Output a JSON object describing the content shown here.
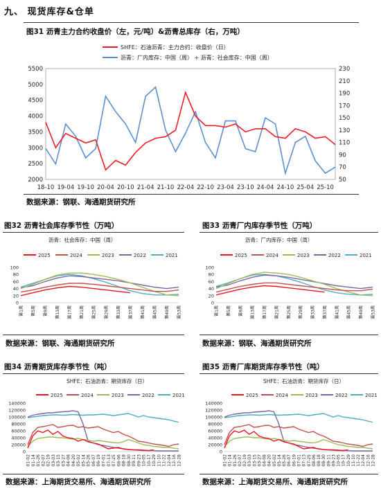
{
  "section": {
    "title": "九、   现货库存&仓单"
  },
  "figures": {
    "f31": {
      "title": "图31   沥青主力合约收盘价（左，元/吨）&沥青总库存（右，万吨）",
      "source": "数据来源：钢联、海通期货研究所"
    },
    "f32": {
      "title": "图32   沥青社会库存季节性（万吨）",
      "source": "数据来源：钢联、海通期货研究所"
    },
    "f33": {
      "title": "图33   沥青厂内库存季节性（万吨）",
      "source": "数据来源：钢联、海通期货研究所"
    },
    "f34": {
      "title": "图34   沥青期货库存季节性（吨）",
      "source": "数据来源：上海期货交易所、海通期货研究所"
    },
    "f35": {
      "title": "图35   沥青厂库期货库存季节性（吨）",
      "source": "数据来源：上海期货交易所、海通期货研究所"
    }
  },
  "colors": {
    "red": "#ee1c25",
    "blue": "#5b8fcf",
    "c2025": "#e8161f",
    "c2024": "#c0504d",
    "c2023": "#9bbb59",
    "c2022": "#8064a2",
    "c2021": "#4bacc6"
  },
  "chart_data": [
    {
      "id": "f31",
      "type": "line",
      "series": [
        {
          "name": "SHFE：石油沥青：主力合约：收盘价（日）",
          "axis": "left",
          "x": [
            "18-10",
            "19-01",
            "19-04",
            "19-07",
            "19-10",
            "20-01",
            "20-04",
            "20-07",
            "20-10",
            "21-01",
            "21-04",
            "21-07",
            "21-10",
            "22-01",
            "22-04",
            "22-07",
            "22-10",
            "23-01",
            "23-04",
            "23-07",
            "23-10",
            "24-01",
            "24-04",
            "24-07",
            "24-10",
            "25-01",
            "25-04",
            "25-07",
            "25-10",
            "25-12"
          ],
          "values": [
            3800,
            3000,
            3450,
            3300,
            3150,
            3250,
            2300,
            2600,
            2450,
            2850,
            3150,
            3300,
            3350,
            3550,
            4750,
            4000,
            3700,
            3700,
            3650,
            3750,
            3500,
            3600,
            3600,
            3350,
            3300,
            3600,
            3500,
            3300,
            3350,
            3100
          ]
        },
        {
          "name": "沥青：厂内库存：中国（周） + 沥青：社会库存：中国（周）",
          "axis": "right",
          "x": [
            "18-10",
            "19-01",
            "19-04",
            "19-07",
            "19-10",
            "20-01",
            "20-04",
            "20-07",
            "20-10",
            "21-01",
            "21-04",
            "21-07",
            "21-10",
            "22-01",
            "22-04",
            "22-07",
            "22-10",
            "23-01",
            "23-04",
            "23-07",
            "23-10",
            "24-01",
            "24-04",
            "24-07",
            "24-10",
            "25-01",
            "25-04",
            "25-07",
            "25-10",
            "25-12"
          ],
          "values": [
            100,
            75,
            140,
            120,
            85,
            100,
            185,
            160,
            140,
            110,
            185,
            200,
            130,
            95,
            125,
            160,
            110,
            85,
            145,
            145,
            100,
            95,
            150,
            140,
            60,
            110,
            120,
            80,
            60,
            70
          ]
        }
      ],
      "xticks": [
        "18-10",
        "19-04",
        "19-10",
        "20-04",
        "20-10",
        "21-04",
        "21-10",
        "22-04",
        "22-10",
        "23-04",
        "23-10",
        "24-04",
        "24-10",
        "25-04",
        "25-10"
      ],
      "ylim": [
        2000,
        5500
      ],
      "yticks": [
        2000,
        2500,
        3000,
        3500,
        4000,
        4500,
        5000,
        5500
      ],
      "y2lim": [
        50,
        230
      ],
      "y2ticks": [
        50,
        70,
        90,
        110,
        130,
        150,
        170,
        190,
        210,
        230
      ]
    },
    {
      "id": "f32",
      "type": "line",
      "title": "沥青：社会库存：中国（周）",
      "categories": [
        "第1周",
        "第5周",
        "第9周",
        "第13周",
        "第17周",
        "第21周",
        "第25周",
        "第29周",
        "第33周",
        "第37周",
        "第41周",
        "第45周",
        "第49周",
        "第53周"
      ],
      "ylim": [
        0,
        100
      ],
      "yticks": [
        0,
        20,
        40,
        60,
        80,
        100
      ],
      "series": [
        {
          "name": "2025",
          "values": [
            20,
            28,
            36,
            42,
            46,
            44,
            40,
            36,
            32,
            28,
            null,
            null,
            null,
            null
          ]
        },
        {
          "name": "2024",
          "values": [
            30,
            36,
            44,
            50,
            55,
            55,
            52,
            48,
            44,
            40,
            36,
            32,
            32,
            36
          ]
        },
        {
          "name": "2023",
          "values": [
            40,
            52,
            66,
            78,
            84,
            84,
            80,
            74,
            66,
            56,
            44,
            32,
            22,
            20
          ]
        },
        {
          "name": "2022",
          "values": [
            42,
            48,
            60,
            70,
            76,
            74,
            70,
            66,
            62,
            56,
            50,
            44,
            40,
            44
          ]
        },
        {
          "name": "2021",
          "values": [
            44,
            55,
            66,
            76,
            80,
            76,
            68,
            58,
            46,
            34,
            26,
            22,
            22,
            24
          ]
        }
      ]
    },
    {
      "id": "f33",
      "type": "line",
      "title": "沥青：厂内库存：中国（周）",
      "categories": [
        "第1周",
        "第5周",
        "第9周",
        "第13周",
        "第17周",
        "第21周",
        "第25周",
        "第29周",
        "第33周",
        "第37周",
        "第41周",
        "第45周",
        "第49周",
        "第53周"
      ],
      "ylim": [
        0,
        100
      ],
      "yticks": [
        0,
        20,
        40,
        60,
        80,
        100
      ],
      "series": [
        {
          "name": "2025",
          "values": [
            22,
            30,
            38,
            44,
            48,
            46,
            42,
            38,
            34,
            30,
            null,
            null,
            null,
            null
          ]
        },
        {
          "name": "2024",
          "values": [
            30,
            38,
            46,
            52,
            56,
            56,
            52,
            48,
            44,
            40,
            36,
            34,
            34,
            38
          ]
        },
        {
          "name": "2023",
          "values": [
            40,
            54,
            68,
            80,
            86,
            84,
            80,
            72,
            62,
            52,
            40,
            30,
            22,
            20
          ]
        },
        {
          "name": "2022",
          "values": [
            44,
            50,
            62,
            72,
            78,
            76,
            72,
            66,
            60,
            54,
            48,
            44,
            40,
            44
          ]
        },
        {
          "name": "2021",
          "values": [
            46,
            56,
            68,
            78,
            80,
            76,
            68,
            58,
            46,
            36,
            28,
            24,
            22,
            24
          ]
        }
      ]
    },
    {
      "id": "f34",
      "type": "line",
      "title": "SHFE：石油沥青：期货库存（日）",
      "categories": [
        "01-02",
        "01-14",
        "01-26",
        "02-07",
        "02-19",
        "03-03",
        "03-15",
        "03-27",
        "04-08",
        "04-20",
        "05-02",
        "05-14",
        "05-26",
        "06-07",
        "06-19",
        "07-01",
        "07-13",
        "07-25",
        "08-06",
        "08-18",
        "08-30",
        "09-11",
        "09-23",
        "10-05",
        "10-17",
        "10-29",
        "11-10",
        "11-22",
        "12-04",
        "12-16",
        "12-28"
      ],
      "ylim": [
        0,
        140000
      ],
      "yticks": [
        0,
        20000,
        40000,
        60000,
        80000,
        100000,
        120000,
        140000
      ],
      "series": [
        {
          "name": "2025",
          "values": [
            10000,
            45000,
            60000,
            55000,
            62000,
            50000,
            58000,
            45000,
            40000,
            38000,
            30000,
            35000,
            28000,
            25000,
            22000,
            15000,
            8000,
            10000,
            12000,
            8000,
            6000,
            5000,
            5000,
            4000,
            3000,
            5000,
            null,
            null,
            null,
            null,
            null
          ]
        },
        {
          "name": "2024",
          "values": [
            20000,
            55000,
            70000,
            72000,
            75000,
            78000,
            70000,
            72000,
            75000,
            76000,
            70000,
            72000,
            68000,
            70000,
            72000,
            65000,
            60000,
            55000,
            58000,
            50000,
            45000,
            38000,
            30000,
            28000,
            25000,
            22000,
            20000,
            18000,
            15000,
            20000,
            22000
          ]
        },
        {
          "name": "2023",
          "values": [
            15000,
            30000,
            38000,
            40000,
            42000,
            42000,
            40000,
            40000,
            38000,
            36000,
            38000,
            35000,
            33000,
            30000,
            32000,
            30000,
            28000,
            26000,
            25000,
            28000,
            35000,
            30000,
            25000,
            20000,
            18000,
            15000,
            14000,
            12000,
            12000,
            10000,
            8000
          ]
        },
        {
          "name": "2022",
          "values": [
            100000,
            105000,
            108000,
            110000,
            112000,
            112000,
            114000,
            115000,
            116000,
            118000,
            115000,
            80000,
            30000,
            25000,
            20000,
            18000,
            15000,
            12000,
            10000,
            8000,
            6000,
            5000,
            4000,
            3000,
            3000,
            3000,
            2000,
            2000,
            2000,
            2000,
            2000
          ]
        },
        {
          "name": "2021",
          "values": [
            98000,
            100000,
            102000,
            104000,
            105000,
            106000,
            106000,
            105000,
            106000,
            107000,
            106000,
            105000,
            106000,
            106000,
            107000,
            108000,
            106000,
            104000,
            106000,
            108000,
            110000,
            105000,
            100000,
            104000,
            100000,
            98000,
            96000,
            94000,
            92000,
            88000,
            85000
          ]
        }
      ]
    },
    {
      "id": "f35",
      "type": "line",
      "title": "SHFE：石油沥青：期货库存（日）",
      "categories": [
        "01-02",
        "01-14",
        "01-26",
        "02-07",
        "02-19",
        "03-03",
        "03-15",
        "03-27",
        "04-08",
        "04-20",
        "05-02",
        "05-14",
        "05-26",
        "06-07",
        "06-19",
        "07-01",
        "07-13",
        "07-25",
        "08-06",
        "08-18",
        "08-30",
        "09-11",
        "09-23",
        "10-05",
        "10-17",
        "10-29",
        "11-10",
        "11-22",
        "12-04",
        "12-16",
        "12-28"
      ],
      "ylim": [
        0,
        140000
      ],
      "yticks": [
        0,
        20000,
        40000,
        60000,
        80000,
        100000,
        120000,
        140000
      ],
      "series": [
        {
          "name": "2025",
          "values": [
            10000,
            45000,
            60000,
            55000,
            62000,
            50000,
            58000,
            45000,
            40000,
            38000,
            30000,
            35000,
            28000,
            25000,
            22000,
            15000,
            8000,
            10000,
            12000,
            8000,
            6000,
            5000,
            5000,
            4000,
            3000,
            5000,
            null,
            null,
            null,
            null,
            null
          ]
        },
        {
          "name": "2024",
          "values": [
            20000,
            55000,
            70000,
            72000,
            75000,
            78000,
            70000,
            72000,
            75000,
            76000,
            70000,
            72000,
            68000,
            70000,
            72000,
            65000,
            60000,
            55000,
            58000,
            50000,
            45000,
            38000,
            30000,
            28000,
            25000,
            22000,
            20000,
            18000,
            15000,
            20000,
            22000
          ]
        },
        {
          "name": "2023",
          "values": [
            15000,
            30000,
            38000,
            40000,
            42000,
            42000,
            40000,
            40000,
            38000,
            36000,
            38000,
            35000,
            33000,
            30000,
            32000,
            30000,
            28000,
            26000,
            25000,
            28000,
            35000,
            30000,
            25000,
            20000,
            18000,
            15000,
            14000,
            12000,
            12000,
            10000,
            8000
          ]
        },
        {
          "name": "2022",
          "values": [
            100000,
            105000,
            108000,
            110000,
            112000,
            112000,
            114000,
            115000,
            116000,
            118000,
            115000,
            80000,
            30000,
            25000,
            20000,
            18000,
            15000,
            12000,
            10000,
            8000,
            6000,
            5000,
            4000,
            3000,
            3000,
            3000,
            2000,
            2000,
            2000,
            2000,
            2000
          ]
        },
        {
          "name": "2021",
          "values": [
            98000,
            100000,
            102000,
            104000,
            105000,
            106000,
            106000,
            105000,
            106000,
            107000,
            106000,
            105000,
            106000,
            106000,
            107000,
            108000,
            106000,
            104000,
            106000,
            108000,
            110000,
            105000,
            100000,
            104000,
            100000,
            98000,
            96000,
            94000,
            92000,
            88000,
            85000
          ]
        }
      ]
    }
  ]
}
